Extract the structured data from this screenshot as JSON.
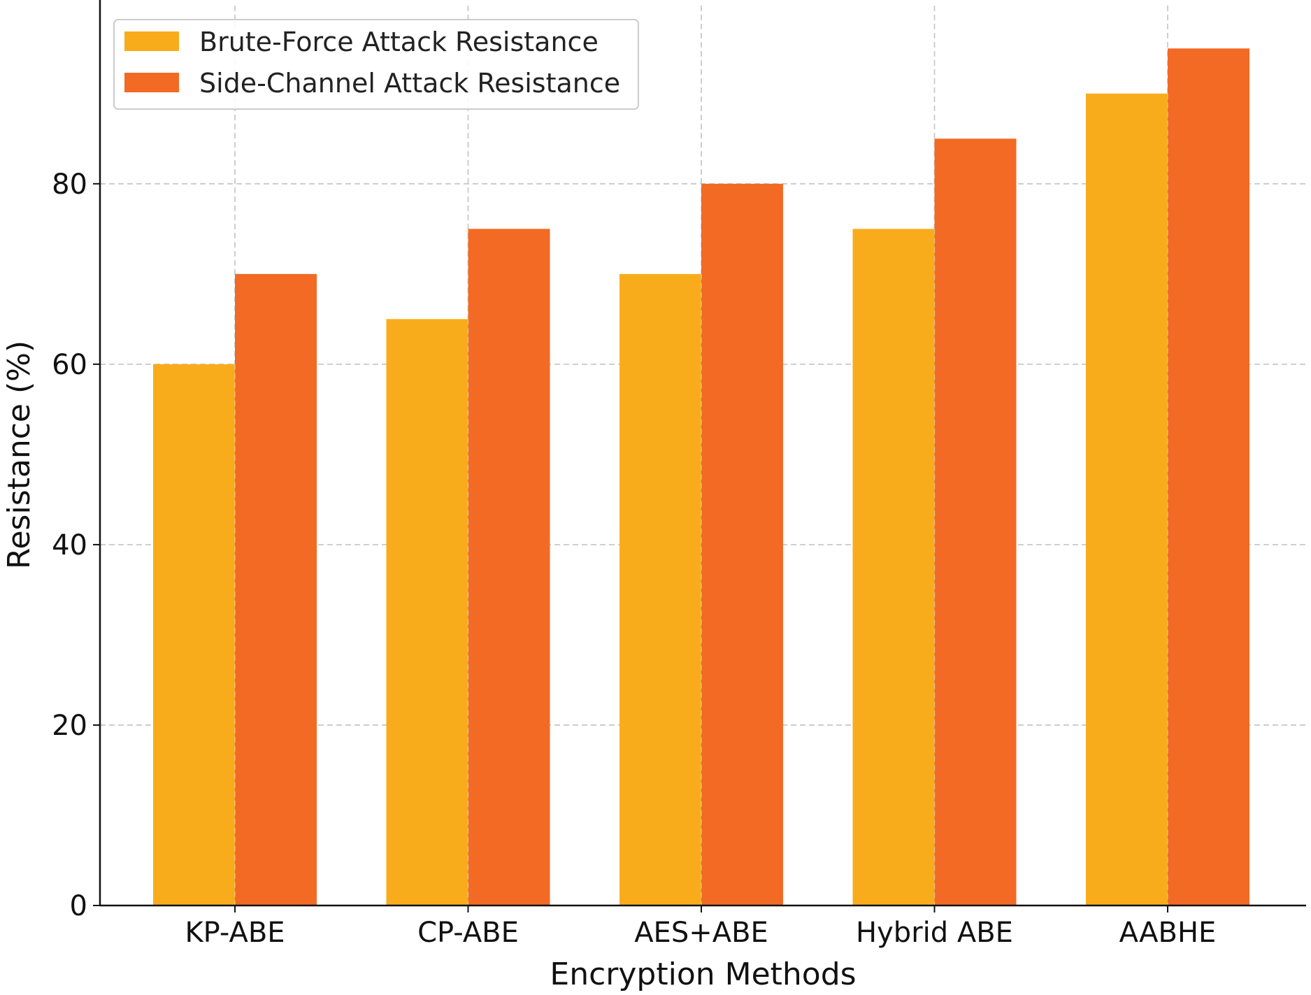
{
  "chart_data": {
    "type": "bar",
    "title": "",
    "xlabel": "Encryption Methods",
    "ylabel": "Resistance (%)",
    "categories": [
      "KP-ABE",
      "CP-ABE",
      "AES+ABE",
      "Hybrid ABE",
      "AABHE"
    ],
    "series": [
      {
        "name": "Brute-Force Attack Resistance",
        "values": [
          60,
          65,
          70,
          75,
          90
        ],
        "color": "#F9AC1B"
      },
      {
        "name": "Side-Channel Attack Resistance",
        "values": [
          70,
          75,
          80,
          85,
          95
        ],
        "color": "#F26A24"
      }
    ],
    "ylim": [
      0,
      99.75
    ],
    "yticks": [
      0,
      20,
      40,
      60,
      80
    ],
    "grid": true,
    "legend_position": "top-left"
  }
}
